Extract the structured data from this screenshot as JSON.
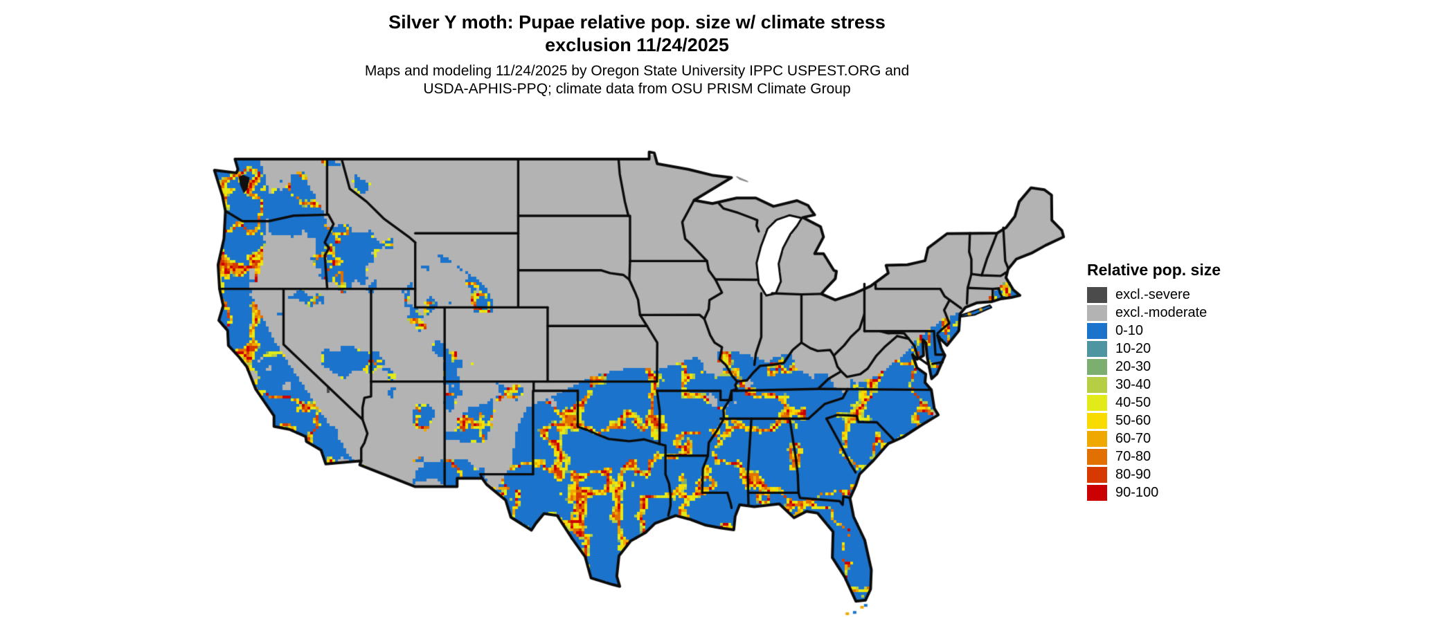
{
  "title": {
    "line1": "Silver Y moth: Pupae relative pop. size w/ climate stress",
    "line2": "exclusion 11/24/2025"
  },
  "subtitle": {
    "line1": "Maps and modeling 11/24/2025 by Oregon State University IPPC USPEST.ORG and",
    "line2": "USDA-APHIS-PPQ; climate data from OSU PRISM Climate Group"
  },
  "legend": {
    "title": "Relative pop. size",
    "entries": [
      {
        "label": "excl.-severe",
        "color": "#4B4B4B"
      },
      {
        "label": "excl.-moderate",
        "color": "#B3B3B3"
      },
      {
        "label": "0-10",
        "color": "#1C73CB"
      },
      {
        "label": "10-20",
        "color": "#4E95A1"
      },
      {
        "label": "20-30",
        "color": "#7BAE6F"
      },
      {
        "label": "30-40",
        "color": "#B5CE44"
      },
      {
        "label": "40-50",
        "color": "#E3EA1A"
      },
      {
        "label": "50-60",
        "color": "#F8DB00"
      },
      {
        "label": "60-70",
        "color": "#EFA800"
      },
      {
        "label": "70-80",
        "color": "#E17000"
      },
      {
        "label": "80-90",
        "color": "#D63A00"
      },
      {
        "label": "90-100",
        "color": "#CB0000"
      }
    ]
  },
  "chart_data": {
    "type": "heatmap",
    "subtype": "geographic raster map, contiguous United States with black state borders",
    "title": "Silver Y moth: Pupae relative pop. size w/ climate stress exclusion 11/24/2025",
    "variable": "Relative population size (%)",
    "date_shown": "11/24/2025",
    "classes": [
      "excl.-severe",
      "excl.-moderate",
      "0-10",
      "10-20",
      "20-30",
      "30-40",
      "40-50",
      "50-60",
      "60-70",
      "70-80",
      "80-90",
      "90-100"
    ],
    "class_colors": [
      "#4B4B4B",
      "#B3B3B3",
      "#1C73CB",
      "#4E95A1",
      "#7BAE6F",
      "#B5CE44",
      "#E3EA1A",
      "#F8DB00",
      "#EFA800",
      "#E17000",
      "#D63A00",
      "#CB0000"
    ],
    "legend_position": "right",
    "spatial_pattern": [
      "Northern and central US (WA east of Cascades highlands, MT, ID highlands, WY, ND, SD, NE, KS north, MN, WI, MI, IA, northern MO, IL, IN, OH, PA, NY, WV, New England) mostly excl.-moderate gray",
      "South and southeast (TX, OK south, AR, LA, MS, AL, GA, FL, SC, NC, TN, KY south, VA, coastal MD/DE/NJ/Long Island) mostly blue 0-10 with vein-like bands of 40-100 (yellow-orange-red)",
      "High 60-100 bands along Texas hill country, Ozarks, southern Appalachians, Carolina piedmont",
      "Pacific coast (W WA, W OR, CA coast and Central Valley) blue with dense yellow/orange/red mountain-edge bands",
      "Intermountain west (NV, UT, AZ, NM, west TX) gray with scattered blue basins and orange fringes; rare excl.-severe dark cells near Death Valley",
      "Great Lakes drawn white; Puget Sound drawn as dark inlet"
    ]
  }
}
